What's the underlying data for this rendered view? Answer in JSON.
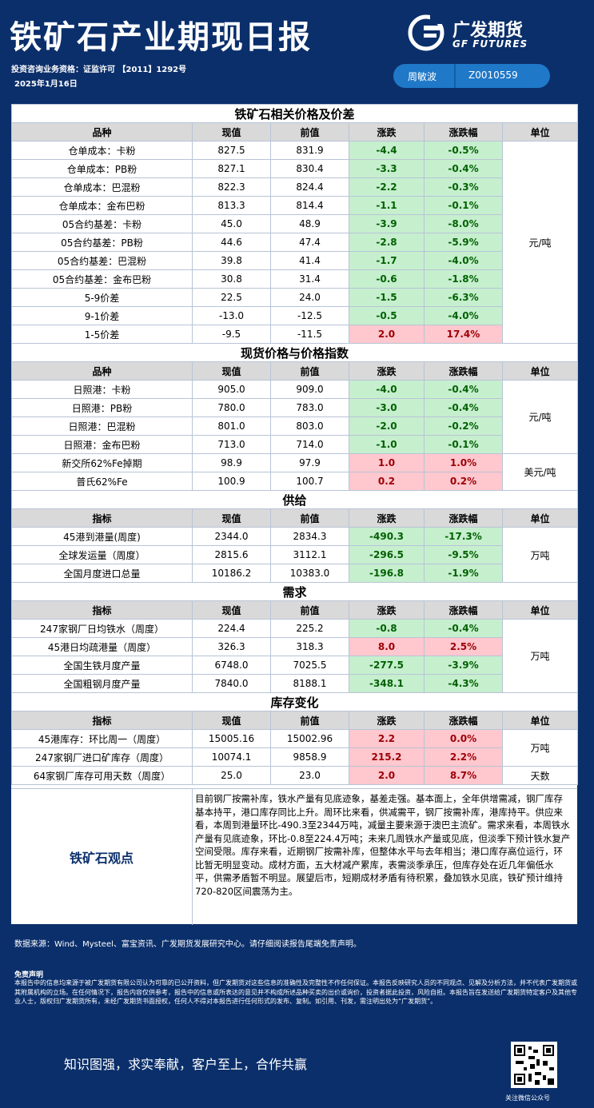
{
  "header": {
    "title": "铁矿石产业期现日报",
    "qualification": "投资咨询业务资格：证监许可 【2011】1292号",
    "date": "2025年1月16日",
    "logo_cn": "广发期货",
    "logo_en": "GF FUTURES",
    "author_name": "周敏波",
    "author_id": "Z0010559"
  },
  "sections": [
    {
      "title": "铁矿石相关价格及价差",
      "columns": [
        "品种",
        "现值",
        "前值",
        "涨跌",
        "涨跌幅",
        "单位"
      ],
      "rows": [
        {
          "name": "仓单成本：卡粉",
          "cur": "827.5",
          "prev": "831.9",
          "chg": "-4.4",
          "pct": "-0.5%",
          "dir": "dn"
        },
        {
          "name": "仓单成本：PB粉",
          "cur": "827.1",
          "prev": "830.4",
          "chg": "-3.3",
          "pct": "-0.4%",
          "dir": "dn"
        },
        {
          "name": "仓单成本：巴混粉",
          "cur": "822.3",
          "prev": "824.4",
          "chg": "-2.2",
          "pct": "-0.3%",
          "dir": "dn"
        },
        {
          "name": "仓单成本：金布巴粉",
          "cur": "813.3",
          "prev": "814.4",
          "chg": "-1.1",
          "pct": "-0.1%",
          "dir": "dn"
        },
        {
          "name": "05合约基差：卡粉",
          "cur": "45.0",
          "prev": "48.9",
          "chg": "-3.9",
          "pct": "-8.0%",
          "dir": "dn"
        },
        {
          "name": "05合约基差：PB粉",
          "cur": "44.6",
          "prev": "47.4",
          "chg": "-2.8",
          "pct": "-5.9%",
          "dir": "dn"
        },
        {
          "name": "05合约基差：巴混粉",
          "cur": "39.8",
          "prev": "41.4",
          "chg": "-1.7",
          "pct": "-4.0%",
          "dir": "dn"
        },
        {
          "name": "05合约基差：金布巴粉",
          "cur": "30.8",
          "prev": "31.4",
          "chg": "-0.6",
          "pct": "-1.8%",
          "dir": "dn"
        },
        {
          "name": "5-9价差",
          "cur": "22.5",
          "prev": "24.0",
          "chg": "-1.5",
          "pct": "-6.3%",
          "dir": "dn"
        },
        {
          "name": "9-1价差",
          "cur": "-13.0",
          "prev": "-12.5",
          "chg": "-0.5",
          "pct": "-4.0%",
          "dir": "dn"
        },
        {
          "name": "1-5价差",
          "cur": "-9.5",
          "prev": "-11.5",
          "chg": "2.0",
          "pct": "17.4%",
          "dir": "up"
        }
      ],
      "units": [
        {
          "text": "元/吨",
          "span": 11
        }
      ]
    },
    {
      "title": "现货价格与价格指数",
      "columns": [
        "品种",
        "现值",
        "前值",
        "涨跌",
        "涨跌幅",
        "单位"
      ],
      "rows": [
        {
          "name": "日照港：卡粉",
          "cur": "905.0",
          "prev": "909.0",
          "chg": "-4.0",
          "pct": "-0.4%",
          "dir": "dn"
        },
        {
          "name": "日照港：PB粉",
          "cur": "780.0",
          "prev": "783.0",
          "chg": "-3.0",
          "pct": "-0.4%",
          "dir": "dn"
        },
        {
          "name": "日照港：巴混粉",
          "cur": "801.0",
          "prev": "803.0",
          "chg": "-2.0",
          "pct": "-0.2%",
          "dir": "dn"
        },
        {
          "name": "日照港：金布巴粉",
          "cur": "713.0",
          "prev": "714.0",
          "chg": "-1.0",
          "pct": "-0.1%",
          "dir": "dn"
        },
        {
          "name": "新交所62%Fe掉期",
          "cur": "98.9",
          "prev": "97.9",
          "chg": "1.0",
          "pct": "1.0%",
          "dir": "up"
        },
        {
          "name": "普氏62%Fe",
          "cur": "100.9",
          "prev": "100.7",
          "chg": "0.2",
          "pct": "0.2%",
          "dir": "up"
        }
      ],
      "units": [
        {
          "text": "元/吨",
          "span": 4
        },
        {
          "text": "美元/吨",
          "span": 2
        }
      ]
    },
    {
      "title": "供给",
      "columns": [
        "指标",
        "现值",
        "前值",
        "涨跌",
        "涨跌幅",
        "单位"
      ],
      "rows": [
        {
          "name": "45港到港量(周度)",
          "cur": "2344.0",
          "prev": "2834.3",
          "chg": "-490.3",
          "pct": "-17.3%",
          "dir": "dn"
        },
        {
          "name": "全球发运量（周度）",
          "cur": "2815.6",
          "prev": "3112.1",
          "chg": "-296.5",
          "pct": "-9.5%",
          "dir": "dn"
        },
        {
          "name": "全国月度进口总量",
          "cur": "10186.2",
          "prev": "10383.0",
          "chg": "-196.8",
          "pct": "-1.9%",
          "dir": "dn"
        }
      ],
      "units": [
        {
          "text": "万吨",
          "span": 3
        }
      ]
    },
    {
      "title": "需求",
      "columns": [
        "指标",
        "现值",
        "前值",
        "涨跌",
        "涨跌幅",
        "单位"
      ],
      "rows": [
        {
          "name": "247家钢厂日均铁水（周度）",
          "cur": "224.4",
          "prev": "225.2",
          "chg": "-0.8",
          "pct": "-0.4%",
          "dir": "dn"
        },
        {
          "name": "45港日均疏港量（周度）",
          "cur": "326.3",
          "prev": "318.3",
          "chg": "8.0",
          "pct": "2.5%",
          "dir": "up"
        },
        {
          "name": "全国生铁月度产量",
          "cur": "6748.0",
          "prev": "7025.5",
          "chg": "-277.5",
          "pct": "-3.9%",
          "dir": "dn"
        },
        {
          "name": "全国粗钢月度产量",
          "cur": "7840.0",
          "prev": "8188.1",
          "chg": "-348.1",
          "pct": "-4.3%",
          "dir": "dn"
        }
      ],
      "units": [
        {
          "text": "万吨",
          "span": 4
        }
      ]
    },
    {
      "title": "库存变化",
      "columns": [
        "指标",
        "现值",
        "前值",
        "涨跌",
        "涨跌幅",
        "单位"
      ],
      "rows": [
        {
          "name": "45港库存：环比周一（周度）",
          "cur": "15005.16",
          "prev": "15002.96",
          "chg": "2.2",
          "pct": "0.0%",
          "dir": "up"
        },
        {
          "name": "247家钢厂进口矿库存（周度）",
          "cur": "10074.1",
          "prev": "9858.9",
          "chg": "215.2",
          "pct": "2.2%",
          "dir": "up"
        },
        {
          "name": "64家钢厂库存可用天数（周度）",
          "cur": "25.0",
          "prev": "23.0",
          "chg": "2.0",
          "pct": "8.7%",
          "dir": "up"
        }
      ],
      "units": [
        {
          "text": "万吨",
          "span": 2
        },
        {
          "text": "天数",
          "span": 1
        }
      ]
    }
  ],
  "view": {
    "label": "铁矿石观点",
    "text": "目前钢厂按需补库，铁水产量有见底迹象，基差走强。基本面上，全年供增需减，钢厂库存基本持平，港口库存同比上升。周环比来看，供减需平，钢厂按需补库，港库持平。供应来看，本周到港量环比-490.3至2344万吨，减量主要来源于澳巴主流矿。需求来看，本周铁水产量有见底迹象，环比-0.8至224.4万吨；未来几周铁水产量或见底，但淡季下预计铁水复产空间受限。库存来看，近期钢厂按需补库，但整体水平与去年相当；港口库存高位运行，环比暂无明显变动。成材方面，五大材减产累库，表需淡季承压，但库存处在近几年偏低水平，供需矛盾暂不明显。展望后市，短期成材矛盾有待积累，叠加铁水见底，铁矿预计维持720-820区间震荡为主。"
  },
  "footer": {
    "source": "数据来源：Wind、Mysteel、富宝资讯、广发期货发展研究中心。请仔细阅读报告尾端免责声明。",
    "disclaimer_title": "免责声明",
    "disclaimer": "本报告中的信息均来源于被广发期货有限公司认为可靠的已公开资料，但广发期货对这些信息的准确性及完整性不作任何保证。本报告反映研究人员的不同观点、见解及分析方法，并不代表广发期货或其附属机构的立场。在任何情况下，报告内容仅供参考，报告中的信息或所表达的意见并不构成所述品种买卖的出价或询价，投资者据此投资，风险自担。本报告旨在发送给广发期货特定客户及其他专业人士，版权归广发期货所有，未经广发期货书面授权，任何人不得对本报告进行任何形式的发布、复制。如引用、刊发，需注明出处为“广发期货”。",
    "slogan": "知识图强，求实奉献，客户至上，合作共赢",
    "qr_caption": "关注微信公众号"
  }
}
